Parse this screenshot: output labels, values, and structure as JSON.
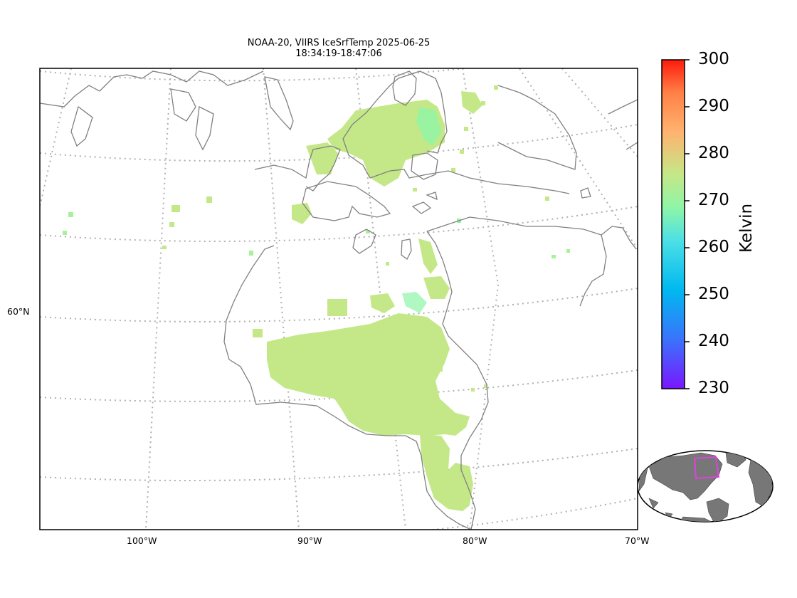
{
  "title": {
    "line1": "NOAA-20, VIIRS IceSrfTemp 2025-06-25",
    "line2": "18:34:19-18:47:06"
  },
  "map": {
    "meridian_labels": [
      "100°W",
      "90°W",
      "80°W",
      "70°W"
    ],
    "parallel_labels": [
      "60°N"
    ],
    "coastline_color": "#808080",
    "graticule_color": "#b0b0b0",
    "data_color_dominant": "#c4e888",
    "data_color_cold": "#8ef5a8"
  },
  "colorbar": {
    "label": "Kelvin",
    "ticks": [
      "300",
      "290",
      "280",
      "270",
      "260",
      "250",
      "240",
      "230"
    ],
    "range": [
      230,
      300
    ],
    "colormap": "rainbow",
    "colors": [
      "#ff1a0d",
      "#ff8046",
      "#ffb370",
      "#c4e888",
      "#8ef5a8",
      "#4ce0e6",
      "#00b8f0",
      "#3a73fb",
      "#7a17ff"
    ]
  },
  "inset": {
    "land_color": "#777777",
    "highlight_color": "#dd44dd"
  }
}
